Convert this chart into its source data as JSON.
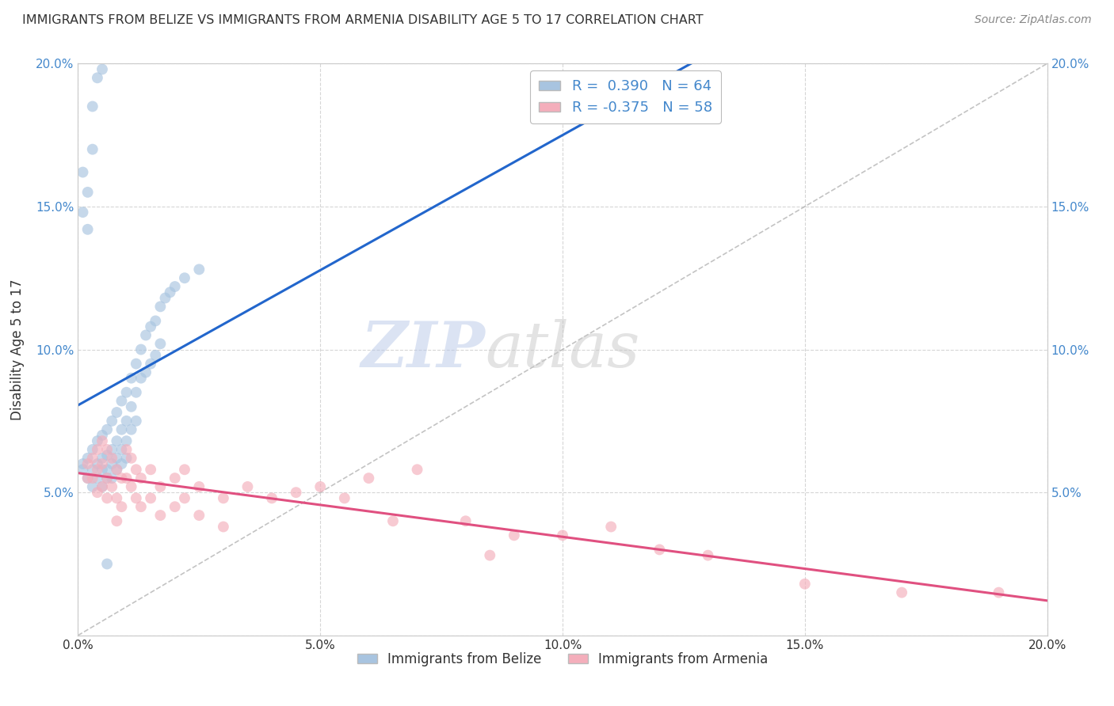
{
  "title": "IMMIGRANTS FROM BELIZE VS IMMIGRANTS FROM ARMENIA DISABILITY AGE 5 TO 17 CORRELATION CHART",
  "source": "Source: ZipAtlas.com",
  "ylabel": "Disability Age 5 to 17",
  "xlim": [
    0.0,
    0.2
  ],
  "ylim": [
    0.0,
    0.2
  ],
  "xticks": [
    0.0,
    0.05,
    0.1,
    0.15,
    0.2
  ],
  "yticks": [
    0.0,
    0.05,
    0.1,
    0.15,
    0.2
  ],
  "xticklabels": [
    "0.0%",
    "5.0%",
    "10.0%",
    "15.0%",
    "20.0%"
  ],
  "yticklabels_left": [
    "",
    "5.0%",
    "10.0%",
    "15.0%",
    "20.0%"
  ],
  "yticklabels_right": [
    "",
    "5.0%",
    "10.0%",
    "15.0%",
    "20.0%"
  ],
  "belize_color": "#A8C4E0",
  "armenia_color": "#F4AEBB",
  "belize_R": 0.39,
  "belize_N": 64,
  "armenia_R": -0.375,
  "armenia_N": 58,
  "belize_line_color": "#2266CC",
  "armenia_line_color": "#E05080",
  "tick_color": "#4488CC",
  "legend_label_belize": "Immigrants from Belize",
  "legend_label_armenia": "Immigrants from Armenia",
  "belize_scatter": [
    [
      0.001,
      0.06
    ],
    [
      0.001,
      0.058
    ],
    [
      0.002,
      0.062
    ],
    [
      0.002,
      0.055
    ],
    [
      0.003,
      0.065
    ],
    [
      0.003,
      0.058
    ],
    [
      0.003,
      0.052
    ],
    [
      0.004,
      0.068
    ],
    [
      0.004,
      0.06
    ],
    [
      0.004,
      0.055
    ],
    [
      0.005,
      0.07
    ],
    [
      0.005,
      0.062
    ],
    [
      0.005,
      0.058
    ],
    [
      0.005,
      0.052
    ],
    [
      0.006,
      0.072
    ],
    [
      0.006,
      0.063
    ],
    [
      0.006,
      0.058
    ],
    [
      0.006,
      0.055
    ],
    [
      0.007,
      0.075
    ],
    [
      0.007,
      0.065
    ],
    [
      0.007,
      0.06
    ],
    [
      0.007,
      0.055
    ],
    [
      0.008,
      0.078
    ],
    [
      0.008,
      0.068
    ],
    [
      0.008,
      0.062
    ],
    [
      0.008,
      0.058
    ],
    [
      0.009,
      0.082
    ],
    [
      0.009,
      0.072
    ],
    [
      0.009,
      0.065
    ],
    [
      0.009,
      0.06
    ],
    [
      0.01,
      0.085
    ],
    [
      0.01,
      0.075
    ],
    [
      0.01,
      0.068
    ],
    [
      0.01,
      0.062
    ],
    [
      0.011,
      0.09
    ],
    [
      0.011,
      0.08
    ],
    [
      0.011,
      0.072
    ],
    [
      0.012,
      0.095
    ],
    [
      0.012,
      0.085
    ],
    [
      0.012,
      0.075
    ],
    [
      0.013,
      0.1
    ],
    [
      0.013,
      0.09
    ],
    [
      0.014,
      0.105
    ],
    [
      0.014,
      0.092
    ],
    [
      0.015,
      0.108
    ],
    [
      0.015,
      0.095
    ],
    [
      0.016,
      0.11
    ],
    [
      0.016,
      0.098
    ],
    [
      0.017,
      0.115
    ],
    [
      0.017,
      0.102
    ],
    [
      0.018,
      0.118
    ],
    [
      0.019,
      0.12
    ],
    [
      0.02,
      0.122
    ],
    [
      0.022,
      0.125
    ],
    [
      0.025,
      0.128
    ],
    [
      0.001,
      0.148
    ],
    [
      0.001,
      0.162
    ],
    [
      0.002,
      0.142
    ],
    [
      0.002,
      0.155
    ],
    [
      0.003,
      0.17
    ],
    [
      0.003,
      0.185
    ],
    [
      0.004,
      0.195
    ],
    [
      0.005,
      0.198
    ],
    [
      0.006,
      0.025
    ]
  ],
  "armenia_scatter": [
    [
      0.002,
      0.06
    ],
    [
      0.002,
      0.055
    ],
    [
      0.003,
      0.062
    ],
    [
      0.003,
      0.055
    ],
    [
      0.004,
      0.065
    ],
    [
      0.004,
      0.058
    ],
    [
      0.004,
      0.05
    ],
    [
      0.005,
      0.068
    ],
    [
      0.005,
      0.06
    ],
    [
      0.005,
      0.052
    ],
    [
      0.006,
      0.065
    ],
    [
      0.006,
      0.055
    ],
    [
      0.006,
      0.048
    ],
    [
      0.007,
      0.062
    ],
    [
      0.007,
      0.052
    ],
    [
      0.008,
      0.058
    ],
    [
      0.008,
      0.048
    ],
    [
      0.008,
      0.04
    ],
    [
      0.009,
      0.055
    ],
    [
      0.009,
      0.045
    ],
    [
      0.01,
      0.065
    ],
    [
      0.01,
      0.055
    ],
    [
      0.011,
      0.062
    ],
    [
      0.011,
      0.052
    ],
    [
      0.012,
      0.058
    ],
    [
      0.012,
      0.048
    ],
    [
      0.013,
      0.055
    ],
    [
      0.013,
      0.045
    ],
    [
      0.015,
      0.058
    ],
    [
      0.015,
      0.048
    ],
    [
      0.017,
      0.052
    ],
    [
      0.017,
      0.042
    ],
    [
      0.02,
      0.055
    ],
    [
      0.02,
      0.045
    ],
    [
      0.022,
      0.058
    ],
    [
      0.022,
      0.048
    ],
    [
      0.025,
      0.052
    ],
    [
      0.025,
      0.042
    ],
    [
      0.03,
      0.048
    ],
    [
      0.03,
      0.038
    ],
    [
      0.035,
      0.052
    ],
    [
      0.04,
      0.048
    ],
    [
      0.045,
      0.05
    ],
    [
      0.05,
      0.052
    ],
    [
      0.055,
      0.048
    ],
    [
      0.06,
      0.055
    ],
    [
      0.065,
      0.04
    ],
    [
      0.07,
      0.058
    ],
    [
      0.08,
      0.04
    ],
    [
      0.085,
      0.028
    ],
    [
      0.09,
      0.035
    ],
    [
      0.1,
      0.035
    ],
    [
      0.11,
      0.038
    ],
    [
      0.12,
      0.03
    ],
    [
      0.13,
      0.028
    ],
    [
      0.15,
      0.018
    ],
    [
      0.17,
      0.015
    ],
    [
      0.19,
      0.015
    ]
  ],
  "background_color": "#FFFFFF",
  "grid_color": "#CCCCCC",
  "watermark_color_zip": "#B8C8E8",
  "watermark_color_atlas": "#C8C8C8"
}
